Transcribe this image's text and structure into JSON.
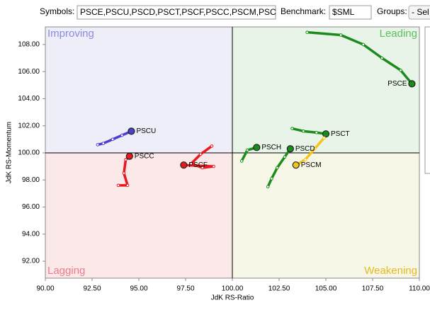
{
  "toolbar": {
    "symbols_label": "Symbols:",
    "symbols_value": "PSCE,PSCU,PSCD,PSCT,PSCF,PSCC,PSCM,PSC",
    "benchmark_label": "Benchmark:",
    "benchmark_value": "$SML",
    "groups_label": "Groups:",
    "groups_value": "- Sel"
  },
  "chart_data": {
    "type": "rrg",
    "x_label": "JdK RS-Ratio",
    "y_label": "JdK RS-Momentum",
    "xlim": [
      90,
      110
    ],
    "ylim": [
      90.75,
      109.3
    ],
    "xticks": [
      {
        "value": 90,
        "label": "90.00"
      },
      {
        "value": 92.5,
        "label": "92.50"
      },
      {
        "value": 95,
        "label": "95.00"
      },
      {
        "value": 97.5,
        "label": "97.50"
      },
      {
        "value": 100,
        "label": "100.00"
      },
      {
        "value": 102.5,
        "label": "102.50"
      },
      {
        "value": 105,
        "label": "105.00"
      },
      {
        "value": 107.5,
        "label": "107.50"
      },
      {
        "value": 110,
        "label": "110.00"
      }
    ],
    "yticks": [
      {
        "value": 92,
        "label": "92.00"
      },
      {
        "value": 94,
        "label": "94.00"
      },
      {
        "value": 96,
        "label": "96.00"
      },
      {
        "value": 98,
        "label": "98.00"
      },
      {
        "value": 100,
        "label": "100.00"
      },
      {
        "value": 102,
        "label": "102.00"
      },
      {
        "value": 104,
        "label": "104.00"
      },
      {
        "value": 106,
        "label": "106.00"
      },
      {
        "value": 108,
        "label": "108.00"
      }
    ],
    "benchmark_level": 100,
    "quadrants": [
      {
        "name": "Improving",
        "color": "#8a8ae0",
        "bg": "#eeeef8"
      },
      {
        "name": "Leading",
        "color": "#5cbf5c",
        "bg": "#e9f4e9"
      },
      {
        "name": "Lagging",
        "color": "#f07a8a",
        "bg": "#fbe9ea"
      },
      {
        "name": "Weakening",
        "color": "#e8b820",
        "bg": "#f7f7e8"
      }
    ],
    "series": [
      {
        "name": "PSCE",
        "color": "#1b8c1b",
        "x": [
          104.0,
          105.8,
          107.0,
          108.0,
          109.0,
          109.6
        ],
        "y": [
          108.9,
          108.7,
          108.0,
          107.0,
          106.1,
          105.1
        ]
      },
      {
        "name": "PSCT",
        "color": "#1b8c1b",
        "x": [
          103.2,
          103.8,
          104.5,
          105.0
        ],
        "y": [
          101.8,
          101.6,
          101.5,
          101.4
        ]
      },
      {
        "name": "PSCH",
        "color": "#1b8c1b",
        "x": [
          100.5,
          100.8,
          101.3
        ],
        "y": [
          99.4,
          100.2,
          100.4
        ]
      },
      {
        "name": "PSCD",
        "color": "#1b8c1b",
        "x": [
          101.9,
          102.1,
          102.4,
          102.8,
          103.1
        ],
        "y": [
          97.5,
          98.1,
          98.9,
          99.7,
          100.3
        ]
      },
      {
        "name": "PSCM",
        "color": "#f5c518",
        "x": [
          104.9,
          104.4,
          103.9,
          103.4
        ],
        "y": [
          101.1,
          100.3,
          99.5,
          99.1
        ]
      },
      {
        "name": "PSCU",
        "color": "#4b3fd0",
        "x": [
          92.8,
          93.1,
          93.6,
          94.1,
          94.6
        ],
        "y": [
          100.6,
          100.7,
          101.0,
          101.3,
          101.6
        ]
      },
      {
        "name": "PSCC",
        "color": "#e8191e",
        "x": [
          93.9,
          94.4,
          94.2,
          94.3,
          94.5
        ],
        "y": [
          97.6,
          97.6,
          98.5,
          99.5,
          99.75
        ]
      },
      {
        "name": "PSCF",
        "color": "#e8191e",
        "x": [
          98.9,
          98.3,
          97.8,
          98.4,
          99.0,
          97.4
        ],
        "y": [
          100.5,
          99.9,
          99.2,
          98.9,
          99.0,
          99.1
        ]
      }
    ]
  }
}
